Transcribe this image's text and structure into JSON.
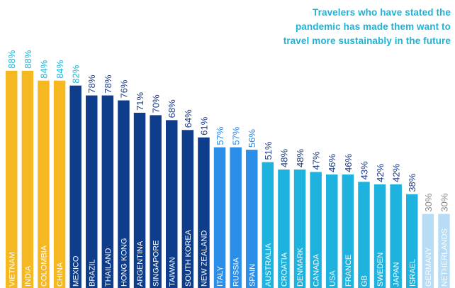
{
  "chart_data": {
    "type": "bar",
    "title_lines": [
      "Travelers who have stated the",
      "pandemic has made them want to",
      "travel more sustainably in the future"
    ],
    "xlabel": "",
    "ylabel": "",
    "ylim": [
      0,
      100
    ],
    "grid": false,
    "legend": "none",
    "categories": [
      "VIETNAM",
      "INDIA",
      "COLOMBIA",
      "CHINA",
      "MEXICO",
      "BRAZIL",
      "THAILAND",
      "HONG KONG",
      "ARGENTINA",
      "SINGAPORE",
      "TAIWAN",
      "SOUTH KOREA",
      "NEW ZEALAND",
      "ITALY",
      "RUSSIA",
      "SPAIN",
      "AUSTRALIA",
      "CROATIA",
      "DENMARK",
      "CANADA",
      "USA",
      "FRANCE",
      "GB",
      "SWEDEN",
      "JAPAN",
      "ISRAEL",
      "GERMANY",
      "NETHERLANDS"
    ],
    "values": [
      88,
      88,
      84,
      84,
      82,
      78,
      78,
      76,
      71,
      70,
      68,
      64,
      61,
      57,
      57,
      56,
      51,
      48,
      48,
      47,
      46,
      46,
      43,
      42,
      42,
      38,
      30,
      30
    ],
    "value_labels": [
      "88%",
      "88%",
      "84%",
      "84%",
      "82%",
      "78%",
      "78%",
      "76%",
      "71%",
      "70%",
      "68%",
      "64%",
      "61%",
      "57%",
      "57%",
      "56%",
      "51%",
      "48%",
      "48%",
      "47%",
      "46%",
      "46%",
      "43%",
      "42%",
      "42%",
      "38%",
      "30%",
      "30%"
    ],
    "bar_colors": [
      "#f6b820",
      "#f6b820",
      "#f6b820",
      "#f6b820",
      "#0e3d8c",
      "#0e3d8c",
      "#0e3d8c",
      "#0e3d8c",
      "#0e3d8c",
      "#0e3d8c",
      "#0e3d8c",
      "#0e3d8c",
      "#0e3d8c",
      "#2b8ee8",
      "#2b8ee8",
      "#2b8ee8",
      "#1eb3df",
      "#1eb3df",
      "#1eb3df",
      "#1eb3df",
      "#1eb3df",
      "#1eb3df",
      "#1eb3df",
      "#1eb3df",
      "#1eb3df",
      "#1eb3df",
      "#b8dcf5",
      "#b8dcf5"
    ],
    "value_label_colors": [
      "#1eb3d6",
      "#1eb3d6",
      "#1eb3d6",
      "#1eb3d6",
      "#1eb3d6",
      "#1f3f8a",
      "#1f3f8a",
      "#1f3f8a",
      "#1f3f8a",
      "#1f3f8a",
      "#1f3f8a",
      "#1f3f8a",
      "#1f3f8a",
      "#2b8ee8",
      "#2b8ee8",
      "#2b8ee8",
      "#1f3f8a",
      "#1f3f8a",
      "#1f3f8a",
      "#1f3f8a",
      "#1f3f8a",
      "#1f3f8a",
      "#1f3f8a",
      "#1f3f8a",
      "#1f3f8a",
      "#1f3f8a",
      "#8a8a8a",
      "#8a8a8a"
    ]
  }
}
